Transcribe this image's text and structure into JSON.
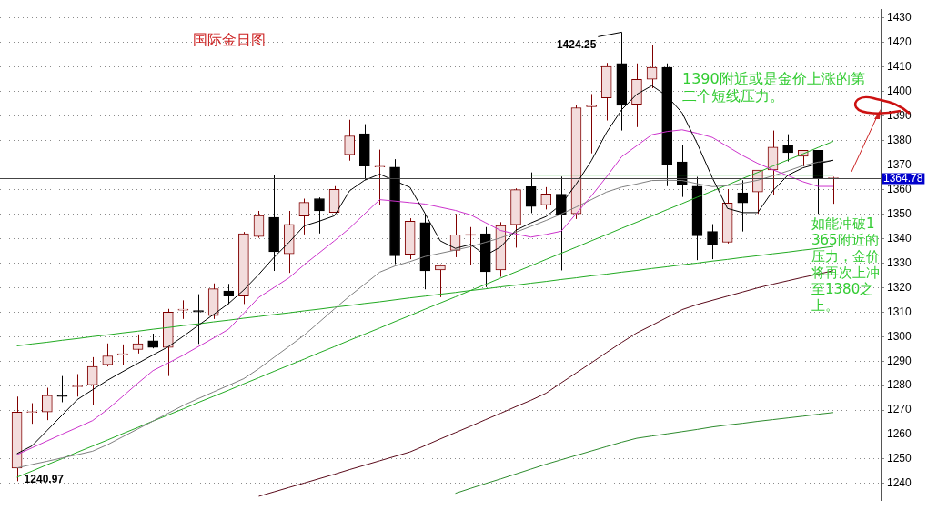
{
  "chart_data": {
    "type": "candlestick",
    "title": "国际金日图",
    "categories": [
      null,
      null,
      null,
      null,
      null,
      null,
      null,
      null,
      null,
      null,
      null,
      null,
      null,
      null,
      null,
      null,
      null,
      null,
      null,
      null,
      null,
      null,
      null,
      null,
      null,
      null,
      null,
      null,
      null,
      null,
      null,
      null,
      null,
      null,
      null,
      null,
      null,
      null,
      null,
      null,
      null,
      null,
      null,
      null,
      null,
      null,
      null,
      null,
      null,
      null,
      null,
      null,
      null,
      null,
      null
    ],
    "ohlc": [
      [
        1246.3,
        1275.5,
        1240.97,
        1269.2
      ],
      [
        1269,
        1272.8,
        1264.4,
        1269.2
      ],
      [
        1269.2,
        1279.1,
        1265.9,
        1276
      ],
      [
        1276,
        1283.9,
        1273.2,
        1275.5
      ],
      [
        1279.5,
        1284.7,
        1275.5,
        1279.7
      ],
      [
        1280.3,
        1291.6,
        1272,
        1287.8
      ],
      [
        1288.5,
        1297.2,
        1287.8,
        1292.1
      ],
      [
        1292.6,
        1296.8,
        1288.3,
        1292.8
      ],
      [
        1294.7,
        1300.9,
        1293.1,
        1297.1
      ],
      [
        1298.3,
        1301.2,
        1295.2,
        1295.6
      ],
      [
        1295.6,
        1311.3,
        1283.9,
        1310
      ],
      [
        1310.8,
        1314.8,
        1307.2,
        1311
      ],
      [
        1310.6,
        1317.3,
        1297,
        1310
      ],
      [
        1308.6,
        1321.7,
        1307.2,
        1319.5
      ],
      [
        1318.6,
        1321.5,
        1313.3,
        1316.5
      ],
      [
        1316.5,
        1342.7,
        1313.3,
        1342
      ],
      [
        1340.8,
        1351.3,
        1340.3,
        1349.4
      ],
      [
        1348.7,
        1365.9,
        1326.8,
        1334.6
      ],
      [
        1333.8,
        1351.3,
        1326,
        1345.8
      ],
      [
        1349.2,
        1356.3,
        1341.7,
        1354.8
      ],
      [
        1356.3,
        1356.8,
        1342.1,
        1351.3
      ],
      [
        1350.7,
        1361.4,
        1350.7,
        1360.1
      ],
      [
        1374.2,
        1388.5,
        1371.8,
        1381.9
      ],
      [
        1382.8,
        1386.7,
        1364,
        1369.6
      ],
      [
        1369.2,
        1376.3,
        1353.9,
        1369.4
      ],
      [
        1369.2,
        1372.4,
        1329.6,
        1333
      ],
      [
        1333.6,
        1348.3,
        1331.6,
        1347.1
      ],
      [
        1346.5,
        1350.1,
        1319.3,
        1326.8
      ],
      [
        1327.2,
        1329.5,
        1316.1,
        1329
      ],
      [
        1335.2,
        1350.1,
        1332.4,
        1341.5
      ],
      [
        1341.3,
        1344.7,
        1329.2,
        1341.5
      ],
      [
        1342,
        1344.7,
        1320.2,
        1326.5
      ],
      [
        1327.2,
        1346.7,
        1324.4,
        1345.3
      ],
      [
        1345.7,
        1360.5,
        1336.3,
        1360
      ],
      [
        1361.2,
        1367,
        1350.4,
        1353.1
      ],
      [
        1353.7,
        1361,
        1351.9,
        1358.2
      ],
      [
        1358.1,
        1365.3,
        1327,
        1349.7
      ],
      [
        1350.1,
        1394.4,
        1348,
        1393.4
      ],
      [
        1393.8,
        1399,
        1374.8,
        1394.6
      ],
      [
        1397.4,
        1411.7,
        1388.2,
        1410.3
      ],
      [
        1411.5,
        1424.25,
        1384.1,
        1394.4
      ],
      [
        1394.8,
        1411.5,
        1385.5,
        1405
      ],
      [
        1405,
        1418.9,
        1401.4,
        1409.9
      ],
      [
        1409.9,
        1411.5,
        1361.4,
        1370
      ],
      [
        1371.3,
        1378.1,
        1357,
        1361.8
      ],
      [
        1361.4,
        1365.2,
        1331.2,
        1341.1
      ],
      [
        1342.9,
        1345.9,
        1331.6,
        1337.6
      ],
      [
        1338.5,
        1360.2,
        1338,
        1354.5
      ],
      [
        1358.7,
        1363.8,
        1342.9,
        1354.6
      ],
      [
        1359,
        1368,
        1350.1,
        1368
      ],
      [
        1368,
        1384.1,
        1357.6,
        1377.3
      ],
      [
        1378.1,
        1382.6,
        1371.5,
        1375.1
      ],
      [
        1373.6,
        1376,
        1369.5,
        1376
      ],
      [
        1376,
        1376,
        1350.1,
        1364.4
      ],
      [
        1364.4,
        1365.2,
        1354.2,
        1364.78
      ]
    ],
    "series": [
      {
        "type": "line",
        "color": "#000000",
        "values": [
          1252.2,
          1255.4,
          1261.7,
          1268,
          1274.3,
          1278.3,
          1282.2,
          1285.7,
          1289.1,
          1292.5,
          1295.8,
          1300.1,
          1304.6,
          1309,
          1313.5,
          1319,
          1325.4,
          1332.3,
          1338.5,
          1345.2,
          1347.1,
          1349.3,
          1359.5,
          1363.8,
          1366.3,
          1363.6,
          1360.9,
          1350.2,
          1339.1,
          1336,
          1337.6,
          1333.2,
          1336.6,
          1343.4,
          1346.4,
          1349,
          1353.9,
          1362.3,
          1371.8,
          1383.3,
          1392.6,
          1398.9,
          1402.4,
          1398.2,
          1391.3,
          1378.8,
          1364.8,
          1352.3,
          1350.6,
          1350.6,
          1359.5,
          1365.9,
          1368.9,
          1370.6,
          1372
        ]
      },
      {
        "type": "line",
        "color": "#cc33cc",
        "values": [
          1251.8,
          1254.6,
          1257.4,
          1260.2,
          1262.9,
          1265.7,
          1270.3,
          1275.6,
          1281,
          1286.1,
          1289.2,
          1292.4,
          1295.9,
          1299.4,
          1303,
          1309.5,
          1316,
          1320,
          1324,
          1329.3,
          1334.2,
          1339.1,
          1344.2,
          1350.1,
          1355.9,
          1355.3,
          1354.7,
          1354.1,
          1352.8,
          1351.5,
          1349.7,
          1346.5,
          1343.3,
          1341.9,
          1340.6,
          1341.7,
          1343,
          1350.2,
          1357.4,
          1365.2,
          1373.4,
          1377.9,
          1382.4,
          1383.7,
          1384.4,
          1383,
          1381.3,
          1377.6,
          1373.9,
          1370.7,
          1368.1,
          1365.7,
          1363.2,
          1361.3,
          1361.3
        ]
      },
      {
        "type": "line",
        "color": "#808080",
        "values": [
          1246.4,
          1247.8,
          1249.1,
          1250.5,
          1251.8,
          1253.2,
          1255.9,
          1259.1,
          1262.3,
          1265.5,
          1268.7,
          1271.9,
          1274.7,
          1277.4,
          1280.1,
          1282.8,
          1286.9,
          1291.5,
          1296,
          1300.6,
          1305.9,
          1311.3,
          1316.5,
          1321.4,
          1326.3,
          1328.8,
          1330.6,
          1332.7,
          1334,
          1335.3,
          1336.7,
          1338.5,
          1340.3,
          1342.6,
          1345,
          1347.4,
          1350,
          1352.9,
          1355.9,
          1359,
          1361,
          1362.3,
          1363.7,
          1363.8,
          1363.7,
          1362.4,
          1361.2,
          1361.6,
          1362.6,
          1363.8,
          1365.6,
          1367.6,
          1369.8,
          1371.2,
          1371.9
        ]
      },
      {
        "type": "line",
        "color": "#5a0a1a",
        "values": [
          null,
          null,
          null,
          null,
          null,
          null,
          null,
          null,
          null,
          null,
          null,
          null,
          null,
          null,
          null,
          null,
          1234.8,
          1236.6,
          1238.4,
          1240.2,
          1242,
          1243.8,
          1245.7,
          1247.5,
          1249.3,
          1251.1,
          1252.9,
          1255.5,
          1258.2,
          1260.8,
          1263.4,
          1266.1,
          1268.7,
          1271.4,
          1274,
          1276.9,
          1281.1,
          1285.2,
          1289.3,
          1293.5,
          1297.6,
          1301.5,
          1304.6,
          1307.8,
          1311,
          1313.1,
          1314.8,
          1316.5,
          1318.2,
          1319.9,
          1321.4,
          1322.8,
          1324.2,
          1325.5,
          1326.9
        ]
      },
      {
        "type": "line",
        "color": "#2e8b2e",
        "values": [
          null,
          null,
          null,
          null,
          null,
          null,
          null,
          null,
          null,
          null,
          null,
          null,
          null,
          null,
          null,
          null,
          null,
          null,
          null,
          null,
          null,
          null,
          null,
          null,
          null,
          null,
          null,
          null,
          null,
          1236,
          1238,
          1240,
          1241.9,
          1243.9,
          1245.9,
          1247.9,
          1249.7,
          1251.5,
          1253.3,
          1255.1,
          1256.9,
          1258.5,
          1259.4,
          1260.3,
          1261.2,
          1262.1,
          1263.1,
          1263.9,
          1264.6,
          1265.4,
          1266.1,
          1266.8,
          1267.5,
          1268.3,
          1269
        ]
      },
      {
        "type": "line",
        "color": "#22aa22",
        "values": [
          1296.2,
          1297,
          1297.7,
          1298.5,
          1299.2,
          1300,
          1300.7,
          1301.5,
          1302.2,
          1303,
          1303.7,
          1304.5,
          1305.2,
          1306,
          1306.7,
          1307.5,
          1308.2,
          1309,
          1309.7,
          1310.5,
          1311.2,
          1312,
          1312.7,
          1313.5,
          1314.2,
          1315,
          1315.8,
          1316.5,
          1317.3,
          1318,
          1318.8,
          1319.5,
          1320.3,
          1321,
          1321.8,
          1322.5,
          1323.3,
          1324,
          1324.8,
          1325.5,
          1326.3,
          1327,
          1327.8,
          1328.5,
          1329.3,
          1330,
          1330.8,
          1331.5,
          1332.3,
          1333,
          1333.8,
          1334.5,
          1335.3,
          1336,
          1336.8
        ]
      },
      {
        "type": "line",
        "color": "#22aa22",
        "values": [
          1242.6,
          1245.1,
          1247.7,
          1250.2,
          1252.8,
          1255.3,
          1257.8,
          1260.4,
          1262.9,
          1265.5,
          1268,
          1270.5,
          1273.1,
          1275.6,
          1278.1,
          1280.7,
          1283.2,
          1285.8,
          1288.3,
          1290.8,
          1293.4,
          1295.9,
          1298.5,
          1301,
          1303.5,
          1306.1,
          1308.6,
          1311.2,
          1313.7,
          1316.2,
          1318.8,
          1321.3,
          1323.9,
          1326.4,
          1328.9,
          1331.5,
          1334,
          1336.5,
          1339.1,
          1341.6,
          1344.2,
          1346.7,
          1349.2,
          1351.8,
          1354.3,
          1356.9,
          1359.4,
          1361.9,
          1364.5,
          1367,
          1369.6,
          1372.1,
          1374.6,
          1377.2,
          1379.7
        ]
      },
      {
        "type": "line",
        "color": "#22aa22",
        "values": [
          null,
          null,
          null,
          null,
          null,
          null,
          null,
          null,
          null,
          null,
          null,
          null,
          null,
          null,
          null,
          null,
          null,
          null,
          null,
          null,
          null,
          null,
          null,
          null,
          null,
          null,
          null,
          null,
          null,
          null,
          null,
          null,
          null,
          null,
          1365.9,
          1365.9,
          1365.9,
          1365.9,
          1365.9,
          1365.9,
          1365.9,
          1365.9,
          1365.9,
          1365.9,
          1365.9,
          1365.9,
          1365.9,
          1365.9,
          1365.9,
          1365.9,
          1365.9,
          1365.9,
          1365.9,
          1365.9,
          1365.9
        ]
      }
    ],
    "ylim": [
      1233,
      1433.6
    ],
    "yticks": [
      1240,
      1250,
      1260,
      1270,
      1280,
      1290,
      1300,
      1310,
      1320,
      1330,
      1340,
      1350,
      1360,
      1370,
      1380,
      1390,
      1400,
      1410,
      1420,
      1430
    ],
    "grid": "y",
    "tick_labels": "y",
    "legend": false,
    "marker": "none",
    "ref_lines": [
      {
        "axis": "y",
        "value": 1364.78,
        "label": "1364.78",
        "color": "#444444"
      }
    ],
    "annotations": [
      "1424.25",
      "1240.97",
      "1390附近或是金价上涨的第二个短线压力。",
      "如能冲破1365附近的压力，金价将再次上冲至1380之上。"
    ]
  }
}
